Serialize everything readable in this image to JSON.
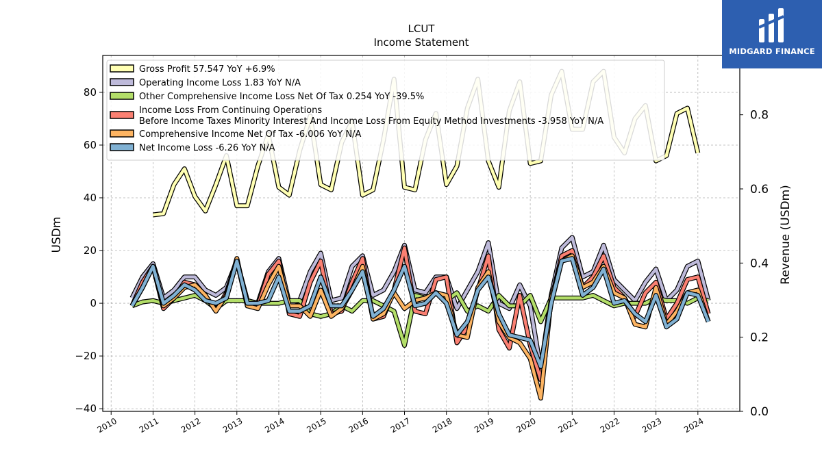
{
  "brand": {
    "name": "MIDGARD FINANCE",
    "bg": "#2d5fb0"
  },
  "chart_data": {
    "type": "line",
    "title": "LCUT",
    "subtitle": "Income Statement",
    "ylabel": "USDm",
    "y2label": "Revenue (USDm)",
    "ylim": [
      -41,
      94
    ],
    "y2lim": [
      0.0,
      0.96
    ],
    "yticks": [
      -40,
      -20,
      0,
      20,
      40,
      60,
      80
    ],
    "y2ticks": [
      "0.0",
      "0.2",
      "0.4",
      "0.6",
      "0.8"
    ],
    "xlim": [
      2009.8,
      2025.0
    ],
    "xticks": [
      "2010",
      "2011",
      "2012",
      "2013",
      "2014",
      "2015",
      "2016",
      "2017",
      "2018",
      "2019",
      "2020",
      "2021",
      "2022",
      "2023",
      "2024"
    ],
    "grid": true,
    "legend_position": "top-left",
    "series": [
      {
        "name": "Gross Profit",
        "legend": "Gross Profit  57.547 YoY +6.9%",
        "color": "#ffffb3",
        "x": [
          2011.0,
          2011.25,
          2011.5,
          2011.75,
          2012.0,
          2012.25,
          2012.5,
          2012.75,
          2013.0,
          2013.25,
          2013.5,
          2013.75,
          2014.0,
          2014.25,
          2014.5,
          2014.75,
          2015.0,
          2015.25,
          2015.5,
          2015.75,
          2016.0,
          2016.25,
          2016.5,
          2016.75,
          2017.0,
          2017.25,
          2017.5,
          2017.75,
          2018.0,
          2018.25,
          2018.5,
          2018.75,
          2019.0,
          2019.25,
          2019.5,
          2019.75,
          2020.0,
          2020.25,
          2020.5,
          2020.75,
          2021.0,
          2021.25,
          2021.5,
          2021.75,
          2022.0,
          2022.25,
          2022.5,
          2022.75,
          2023.0,
          2023.25,
          2023.5,
          2023.75,
          2024.0,
          2024.25
        ],
        "values": [
          33.5,
          34,
          45,
          51,
          40.5,
          35,
          45,
          56,
          37,
          37,
          52,
          64,
          44,
          41,
          58,
          71,
          45,
          43,
          61,
          69,
          41,
          43,
          62,
          85,
          44,
          43,
          62,
          72,
          45,
          52,
          74,
          85,
          54,
          44,
          73,
          84,
          53,
          54,
          79,
          88,
          66,
          66,
          84,
          88,
          63,
          57,
          70,
          75,
          54,
          56,
          72,
          74,
          57,
          null
        ]
      },
      {
        "name": "Operating Income Loss",
        "legend": "Operating Income Loss  1.83 YoY N/A",
        "color": "#bebada",
        "x": [
          2010.5,
          2010.75,
          2011.0,
          2011.25,
          2011.5,
          2011.75,
          2012.0,
          2012.25,
          2012.5,
          2012.75,
          2013.0,
          2013.25,
          2013.5,
          2013.75,
          2014.0,
          2014.25,
          2014.5,
          2014.75,
          2015.0,
          2015.25,
          2015.5,
          2015.75,
          2016.0,
          2016.25,
          2016.5,
          2016.75,
          2017.0,
          2017.25,
          2017.5,
          2017.75,
          2018.0,
          2018.25,
          2018.5,
          2018.75,
          2019.0,
          2019.25,
          2019.5,
          2019.75,
          2020.0,
          2020.25,
          2020.5,
          2020.75,
          2021.0,
          2021.25,
          2021.5,
          2021.75,
          2022.0,
          2022.25,
          2022.5,
          2022.75,
          2023.0,
          2023.25,
          2023.5,
          2023.75,
          2024.0,
          2024.25
        ],
        "values": [
          2,
          10,
          15,
          2,
          5,
          10,
          10,
          5,
          3,
          6,
          16,
          1,
          0,
          12,
          17,
          0,
          1,
          12,
          19,
          1,
          2,
          14,
          18,
          3,
          5,
          12,
          22,
          5,
          4,
          10,
          10,
          -2,
          5,
          12,
          23,
          0,
          -2,
          7,
          -1,
          -25,
          3,
          21,
          25,
          10,
          12,
          22,
          9,
          5,
          1,
          8,
          13,
          1,
          5,
          14,
          16,
          1
        ]
      },
      {
        "name": "Other Comprehensive Income Loss Net Of Tax",
        "legend": "Other Comprehensive Income Loss Net Of Tax  0.254 YoY -39.5%",
        "color": "#b3de69",
        "x": [
          2010.5,
          2010.75,
          2011.0,
          2011.25,
          2011.5,
          2011.75,
          2012.0,
          2012.25,
          2012.5,
          2012.75,
          2013.0,
          2013.25,
          2013.5,
          2013.75,
          2014.0,
          2014.25,
          2014.5,
          2014.75,
          2015.0,
          2015.25,
          2015.5,
          2015.75,
          2016.0,
          2016.25,
          2016.5,
          2016.75,
          2017.0,
          2017.25,
          2017.5,
          2017.75,
          2018.0,
          2018.25,
          2018.5,
          2018.75,
          2019.0,
          2019.25,
          2019.5,
          2019.75,
          2020.0,
          2020.25,
          2020.5,
          2020.75,
          2021.0,
          2021.25,
          2021.5,
          2021.75,
          2022.0,
          2022.25,
          2022.5,
          2022.75,
          2023.0,
          2023.25,
          2023.5,
          2023.75,
          2024.0,
          2024.25
        ],
        "values": [
          -1,
          0.5,
          1,
          0,
          1,
          2,
          3,
          1,
          -2,
          1,
          1,
          1,
          0,
          0,
          0,
          1,
          1,
          -4,
          -5,
          -4,
          -1,
          -3,
          1,
          1,
          -1,
          -3,
          -16,
          3,
          2,
          4,
          1,
          4,
          -3,
          -1,
          -3,
          3,
          -1,
          -1,
          3,
          -7,
          2,
          2,
          2,
          2,
          3,
          1,
          -1,
          0,
          0,
          0,
          2,
          1,
          1,
          0,
          2,
          1
        ]
      },
      {
        "name": "Income Loss From Continuing Operations",
        "legend": "Income Loss From Continuing Operations\nBefore Income Taxes Minority Interest And Income Loss From Equity Method Investments  -3.958 YoY N/A",
        "color": "#fb8072",
        "x": [
          2010.5,
          2010.75,
          2011.0,
          2011.25,
          2011.5,
          2011.75,
          2012.0,
          2012.25,
          2012.5,
          2012.75,
          2013.0,
          2013.25,
          2013.5,
          2013.75,
          2014.0,
          2014.25,
          2014.5,
          2014.75,
          2015.0,
          2015.25,
          2015.5,
          2015.75,
          2016.0,
          2016.25,
          2016.5,
          2016.75,
          2017.0,
          2017.25,
          2017.5,
          2017.75,
          2018.0,
          2018.25,
          2018.5,
          2018.75,
          2019.0,
          2019.25,
          2019.5,
          2019.75,
          2020.0,
          2020.25,
          2020.5,
          2020.75,
          2021.0,
          2021.25,
          2021.5,
          2021.75,
          2022.0,
          2022.25,
          2022.5,
          2022.75,
          2023.0,
          2023.25,
          2023.5,
          2023.75,
          2024.0,
          2024.25
        ],
        "values": [
          -1,
          8,
          14,
          -2,
          2,
          8,
          7,
          3,
          -3,
          4,
          16,
          -1,
          -1,
          11,
          16,
          -4,
          -5,
          8,
          16,
          -4,
          -3,
          8,
          17,
          -6,
          -5,
          5,
          21,
          -3,
          -4,
          9,
          10,
          -15,
          -9,
          5,
          18,
          -10,
          -17,
          3,
          -16,
          -29,
          1,
          18,
          20,
          6,
          10,
          18,
          6,
          2,
          -5,
          4,
          8,
          -6,
          0,
          9,
          10,
          -4
        ]
      },
      {
        "name": "Comprehensive Income Net Of Tax",
        "legend": "Comprehensive Income Net Of Tax  -6.006 YoY N/A",
        "color": "#fdb462",
        "x": [
          2010.5,
          2010.75,
          2011.0,
          2011.25,
          2011.5,
          2011.75,
          2012.0,
          2012.25,
          2012.5,
          2012.75,
          2013.0,
          2013.25,
          2013.5,
          2013.75,
          2014.0,
          2014.25,
          2014.5,
          2014.75,
          2015.0,
          2015.25,
          2015.5,
          2015.75,
          2016.0,
          2016.25,
          2016.5,
          2016.75,
          2017.0,
          2017.25,
          2017.5,
          2017.75,
          2018.0,
          2018.25,
          2018.5,
          2018.75,
          2019.0,
          2019.25,
          2019.5,
          2019.75,
          2020.0,
          2020.25,
          2020.5,
          2020.75,
          2021.0,
          2021.25,
          2021.5,
          2021.75,
          2022.0,
          2022.25,
          2022.5,
          2022.75,
          2023.0,
          2023.25,
          2023.5,
          2023.75,
          2024.0,
          2024.25
        ],
        "values": [
          -1,
          6,
          14,
          -1,
          2,
          6,
          7,
          3,
          -3,
          3,
          17,
          -1,
          -2,
          7,
          14,
          -1,
          -1,
          -5,
          5,
          -5,
          -2,
          5,
          14,
          -6,
          -4,
          4,
          -2,
          1,
          2,
          4,
          3,
          -12,
          -13,
          6,
          12,
          -7,
          -13,
          -15,
          -21,
          -36,
          2,
          16,
          18,
          6,
          8,
          14,
          4,
          2,
          -8,
          -9,
          6,
          -8,
          -3,
          4,
          5,
          -7
        ]
      },
      {
        "name": "Net Income Loss",
        "legend": "Net Income Loss  -6.26 YoY N/A",
        "color": "#80b1d3",
        "x": [
          2010.5,
          2010.75,
          2011.0,
          2011.25,
          2011.5,
          2011.75,
          2012.0,
          2012.25,
          2012.5,
          2012.75,
          2013.0,
          2013.25,
          2013.5,
          2013.75,
          2014.0,
          2014.25,
          2014.5,
          2014.75,
          2015.0,
          2015.25,
          2015.5,
          2015.75,
          2016.0,
          2016.25,
          2016.5,
          2016.75,
          2017.0,
          2017.25,
          2017.5,
          2017.75,
          2018.0,
          2018.25,
          2018.5,
          2018.75,
          2019.0,
          2019.25,
          2019.5,
          2019.75,
          2020.0,
          2020.25,
          2020.5,
          2020.75,
          2021.0,
          2021.25,
          2021.5,
          2021.75,
          2022.0,
          2022.25,
          2022.5,
          2022.75,
          2023.0,
          2023.25,
          2023.5,
          2023.75,
          2024.0,
          2024.25
        ],
        "values": [
          -1,
          6,
          14,
          0,
          3,
          7,
          5,
          1,
          0,
          2,
          16,
          0,
          0,
          1,
          10,
          -3,
          -3,
          -1,
          10,
          -1,
          -1,
          5,
          12,
          -5,
          -2,
          5,
          14,
          -1,
          0,
          4,
          0,
          -12,
          -7,
          5,
          10,
          -4,
          -12,
          -13,
          -14,
          -24,
          0,
          16,
          17,
          3,
          6,
          13,
          0,
          1,
          -4,
          -7,
          3,
          -9,
          -6,
          4,
          3,
          -7
        ]
      }
    ]
  }
}
